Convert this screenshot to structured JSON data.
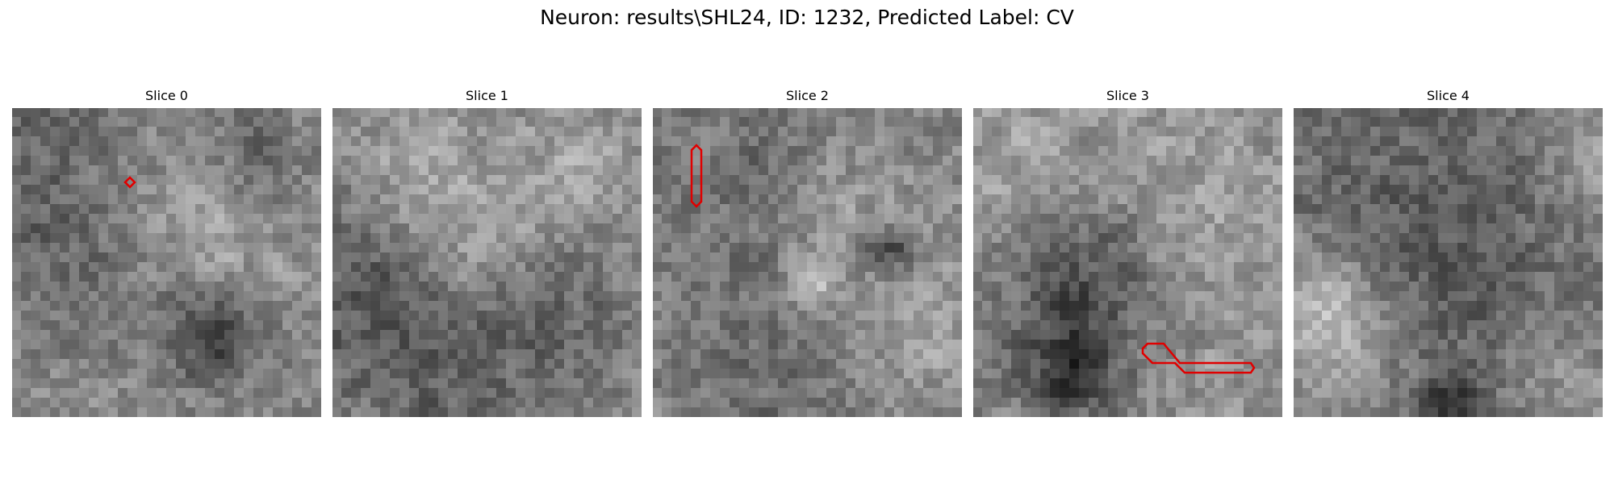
{
  "figure": {
    "title": "Neuron: results\\SHL24, ID: 1232, Predicted Label: CV"
  },
  "slices": [
    {
      "title": "Slice 0",
      "seed": 11,
      "contour_color": "#e00000"
    },
    {
      "title": "Slice 1",
      "seed": 23,
      "contour_color": "#e00000"
    },
    {
      "title": "Slice 2",
      "seed": 37,
      "contour_color": "#e00000"
    },
    {
      "title": "Slice 3",
      "seed": 41,
      "contour_color": "#e00000"
    },
    {
      "title": "Slice 4",
      "seed": 53,
      "contour_color": "#e00000"
    }
  ],
  "colormap": "gray"
}
